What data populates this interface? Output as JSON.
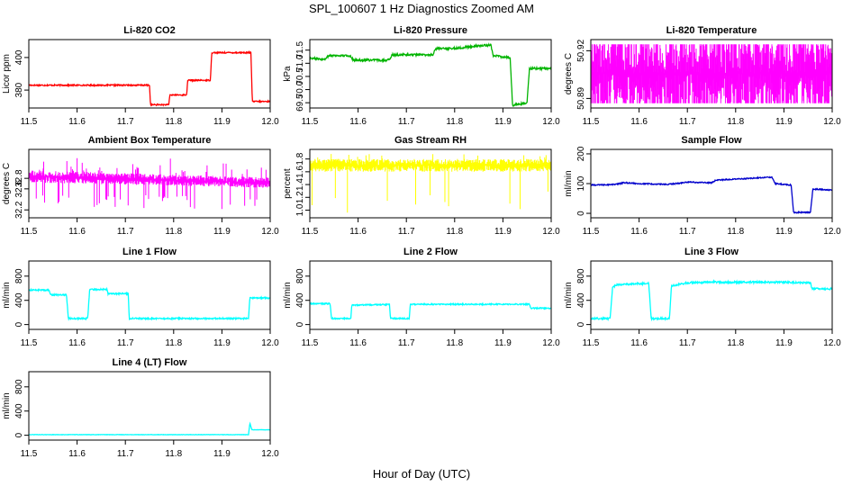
{
  "figure": {
    "title": "SPL_100607  1 Hz Diagnostics Zoomed AM",
    "xlabel": "Hour of Day (UTC)"
  },
  "chart_data": [
    {
      "type": "line",
      "title": "Li-820 CO2",
      "ylabel": "Licor ppm",
      "color": "#ff0000",
      "xlim": [
        11.5,
        12.0
      ],
      "ylim": [
        369,
        411
      ],
      "xticks": [
        "11.5",
        "11.6",
        "11.7",
        "11.8",
        "11.9",
        "12.0"
      ],
      "yticks": [
        {
          "v": 380,
          "label": "380"
        },
        {
          "v": 400,
          "label": "400"
        }
      ],
      "noise": 0.4,
      "points": [
        [
          11.5,
          383
        ],
        [
          11.75,
          383
        ],
        [
          11.752,
          371
        ],
        [
          11.79,
          371
        ],
        [
          11.792,
          377
        ],
        [
          11.827,
          377
        ],
        [
          11.829,
          386
        ],
        [
          11.876,
          386
        ],
        [
          11.879,
          403
        ],
        [
          11.96,
          403
        ],
        [
          11.963,
          373
        ],
        [
          12.0,
          373
        ]
      ]
    },
    {
      "type": "line",
      "title": "Li-820 Pressure",
      "ylabel": "kPa",
      "color": "#00b400",
      "xlim": [
        11.5,
        12.0
      ],
      "ylim": [
        69.3,
        71.9
      ],
      "xticks": [
        "11.5",
        "11.6",
        "11.7",
        "11.8",
        "11.9",
        "12.0"
      ],
      "yticks": [
        {
          "v": 69.5,
          "label": "69.5"
        },
        {
          "v": 70.0,
          "label": "70.0"
        },
        {
          "v": 70.5,
          "label": "70.5"
        },
        {
          "v": 71.0,
          "label": "71.0"
        },
        {
          "v": 71.5,
          "label": "71.5"
        }
      ],
      "noise": 0.04,
      "points": [
        [
          11.5,
          71.2
        ],
        [
          11.53,
          71.15
        ],
        [
          11.54,
          71.3
        ],
        [
          11.585,
          71.28
        ],
        [
          11.59,
          71.12
        ],
        [
          11.665,
          71.12
        ],
        [
          11.67,
          71.32
        ],
        [
          11.755,
          71.32
        ],
        [
          11.76,
          71.55
        ],
        [
          11.8,
          71.57
        ],
        [
          11.875,
          71.7
        ],
        [
          11.88,
          71.3
        ],
        [
          11.915,
          71.2
        ],
        [
          11.92,
          69.4
        ],
        [
          11.95,
          69.5
        ],
        [
          11.955,
          70.8
        ],
        [
          11.98,
          70.8
        ],
        [
          12.0,
          70.8
        ]
      ]
    },
    {
      "type": "dense",
      "title": "Li-820 Temperature",
      "ylabel": "degrees C",
      "color": "#ff00ff",
      "xlim": [
        11.5,
        12.0
      ],
      "ylim": [
        50.884,
        50.927
      ],
      "xticks": [
        "11.5",
        "11.6",
        "11.7",
        "11.8",
        "11.9",
        "12.0"
      ],
      "yticks": [
        {
          "v": 50.89,
          "label": "50.89"
        },
        {
          "v": 50.92,
          "label": "50.92"
        }
      ],
      "band": [
        50.887,
        50.924
      ],
      "spikeLow": 50.887,
      "spikeHigh": 50.924,
      "spikes": 0.65
    },
    {
      "type": "dense",
      "title": "Ambient Box Temperature",
      "ylabel": "degrees C",
      "color": "#ff00ff",
      "xlim": [
        11.5,
        12.0
      ],
      "ylim": [
        32.05,
        33.35
      ],
      "xticks": [
        "11.5",
        "11.6",
        "11.7",
        "11.8",
        "11.9",
        "12.0"
      ],
      "yticks": [
        {
          "v": 32.2,
          "label": "32.2"
        },
        {
          "v": 32.6,
          "label": "32.6"
        },
        {
          "v": 32.8,
          "label": "32.8"
        }
      ],
      "band": [
        32.72,
        32.95
      ],
      "bandEnd": [
        32.62,
        32.82
      ],
      "spikeLow": 32.2,
      "spikeHigh": 33.2,
      "spikes": 0.12
    },
    {
      "type": "dense",
      "title": "Gas Stream RH",
      "ylabel": "percent",
      "color": "#ffff00",
      "xlim": [
        11.5,
        12.0
      ],
      "ylim": [
        0.88,
        1.95
      ],
      "xticks": [
        "11.5",
        "11.6",
        "11.7",
        "11.8",
        "11.9",
        "12.0"
      ],
      "yticks": [
        {
          "v": 1.0,
          "label": "1.0"
        },
        {
          "v": 1.2,
          "label": "1.2"
        },
        {
          "v": 1.4,
          "label": "1.4"
        },
        {
          "v": 1.6,
          "label": "1.6"
        },
        {
          "v": 1.8,
          "label": "1.8"
        }
      ],
      "band": [
        1.6,
        1.8
      ],
      "spikeLow": 0.92,
      "spikeHigh": 1.88,
      "spikes": 0.08
    },
    {
      "type": "line",
      "title": "Sample Flow",
      "ylabel": "ml/min",
      "color": "#0000cc",
      "xlim": [
        11.5,
        12.0
      ],
      "ylim": [
        -15,
        215
      ],
      "xticks": [
        "11.5",
        "11.6",
        "11.7",
        "11.8",
        "11.9",
        "12.0"
      ],
      "yticks": [
        {
          "v": 0,
          "label": "0"
        },
        {
          "v": 100,
          "label": "100"
        },
        {
          "v": 200,
          "label": "200"
        }
      ],
      "noise": 2,
      "points": [
        [
          11.5,
          95
        ],
        [
          11.55,
          97
        ],
        [
          11.57,
          103
        ],
        [
          11.6,
          100
        ],
        [
          11.66,
          97
        ],
        [
          11.7,
          105
        ],
        [
          11.75,
          103
        ],
        [
          11.76,
          112
        ],
        [
          11.8,
          115
        ],
        [
          11.875,
          122
        ],
        [
          11.882,
          100
        ],
        [
          11.915,
          95
        ],
        [
          11.92,
          3
        ],
        [
          11.955,
          3
        ],
        [
          11.96,
          82
        ],
        [
          12.0,
          78
        ]
      ]
    },
    {
      "type": "line",
      "title": "Line 1 Flow",
      "ylabel": "ml/min",
      "color": "#00ffff",
      "xlim": [
        11.5,
        12.0
      ],
      "ylim": [
        -80,
        1050
      ],
      "xticks": [
        "11.5",
        "11.6",
        "11.7",
        "11.8",
        "11.9",
        "12.0"
      ],
      "yticks": [
        {
          "v": 0,
          "label": "0"
        },
        {
          "v": 400,
          "label": "400"
        },
        {
          "v": 800,
          "label": "800"
        }
      ],
      "noise": 12,
      "points": [
        [
          11.5,
          570
        ],
        [
          11.542,
          570
        ],
        [
          11.545,
          490
        ],
        [
          11.578,
          490
        ],
        [
          11.582,
          100
        ],
        [
          11.622,
          100
        ],
        [
          11.626,
          580
        ],
        [
          11.662,
          580
        ],
        [
          11.664,
          510
        ],
        [
          11.706,
          510
        ],
        [
          11.708,
          100
        ],
        [
          11.955,
          100
        ],
        [
          11.958,
          440
        ],
        [
          12.0,
          440
        ]
      ]
    },
    {
      "type": "line",
      "title": "Line 2 Flow",
      "ylabel": "ml/min",
      "color": "#00ffff",
      "xlim": [
        11.5,
        12.0
      ],
      "ylim": [
        -80,
        1050
      ],
      "xticks": [
        "11.5",
        "11.6",
        "11.7",
        "11.8",
        "11.9",
        "12.0"
      ],
      "yticks": [
        {
          "v": 0,
          "label": "0"
        },
        {
          "v": 400,
          "label": "400"
        },
        {
          "v": 800,
          "label": "800"
        }
      ],
      "noise": 10,
      "points": [
        [
          11.5,
          345
        ],
        [
          11.542,
          345
        ],
        [
          11.545,
          100
        ],
        [
          11.585,
          100
        ],
        [
          11.587,
          320
        ],
        [
          11.665,
          330
        ],
        [
          11.667,
          100
        ],
        [
          11.706,
          100
        ],
        [
          11.708,
          335
        ],
        [
          11.955,
          335
        ],
        [
          11.958,
          270
        ],
        [
          12.0,
          270
        ]
      ]
    },
    {
      "type": "line",
      "title": "Line 3 Flow",
      "ylabel": "ml/min",
      "color": "#00ffff",
      "xlim": [
        11.5,
        12.0
      ],
      "ylim": [
        -80,
        1050
      ],
      "xticks": [
        "11.5",
        "11.6",
        "11.7",
        "11.8",
        "11.9",
        "12.0"
      ],
      "yticks": [
        {
          "v": 0,
          "label": "0"
        },
        {
          "v": 400,
          "label": "400"
        },
        {
          "v": 800,
          "label": "800"
        }
      ],
      "noise": 15,
      "points": [
        [
          11.5,
          100
        ],
        [
          11.54,
          100
        ],
        [
          11.545,
          620
        ],
        [
          11.555,
          660
        ],
        [
          11.62,
          680
        ],
        [
          11.625,
          100
        ],
        [
          11.663,
          100
        ],
        [
          11.667,
          640
        ],
        [
          11.7,
          690
        ],
        [
          11.75,
          700
        ],
        [
          11.9,
          700
        ],
        [
          11.92,
          695
        ],
        [
          11.955,
          690
        ],
        [
          11.958,
          590
        ],
        [
          12.0,
          590
        ]
      ]
    },
    {
      "type": "line",
      "title": "Line 4 (LT) Flow",
      "ylabel": "ml/min",
      "color": "#00ffff",
      "xlim": [
        11.5,
        12.0
      ],
      "ylim": [
        -80,
        1050
      ],
      "xticks": [
        "11.5",
        "11.6",
        "11.7",
        "11.8",
        "11.9",
        "12.0"
      ],
      "yticks": [
        {
          "v": 0,
          "label": "0"
        },
        {
          "v": 400,
          "label": "400"
        },
        {
          "v": 800,
          "label": "800"
        }
      ],
      "noise": 3,
      "points": [
        [
          11.5,
          10
        ],
        [
          11.955,
          10
        ],
        [
          11.958,
          200
        ],
        [
          11.962,
          90
        ],
        [
          12.0,
          90
        ]
      ]
    }
  ]
}
